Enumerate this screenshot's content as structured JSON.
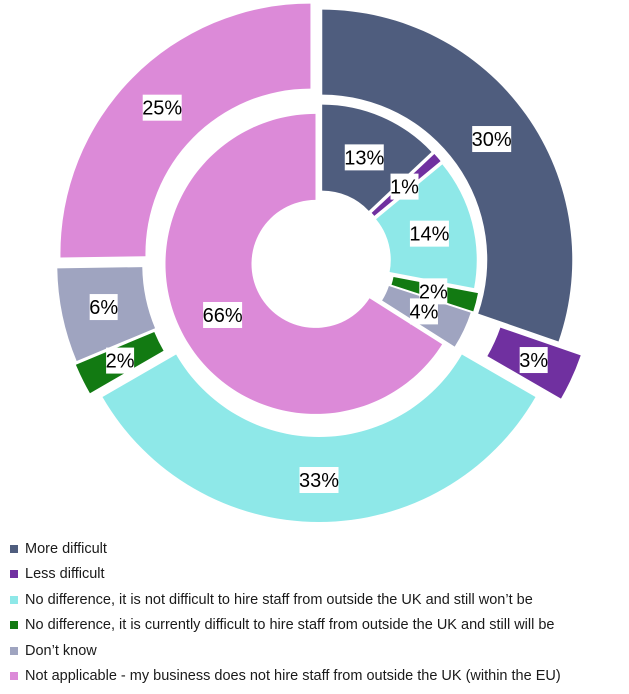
{
  "chart_data": {
    "type": "donut",
    "categories": [
      "More difficult",
      "Less difficult",
      "No difference, it is not difficult to hire staff from outside the UK and still won’t be",
      "No difference, it is currently difficult to hire staff from outside the UK and still will be",
      "Don’t know",
      "Not applicable - my business does not hire staff from outside the UK (within the EU)"
    ],
    "colors": [
      "#4f5d7e",
      "#7030a0",
      "#8ee8e8",
      "#127a12",
      "#9fa4c0",
      "#dc8ad8"
    ],
    "series": [
      {
        "ring": "outer",
        "values": [
          30,
          3,
          33,
          2,
          6,
          25
        ],
        "labels": [
          "30%",
          "3%",
          "33%",
          "2%",
          "6%",
          "25%"
        ]
      },
      {
        "ring": "inner",
        "values": [
          13,
          1,
          14,
          2,
          4,
          66
        ],
        "labels": [
          "13%",
          "1%",
          "14%",
          "2%",
          "4%",
          "66%"
        ]
      }
    ],
    "legend_position": "bottom"
  },
  "legend": {
    "items": [
      {
        "label": "More difficult",
        "color": "#4f5d7e"
      },
      {
        "label": "Less difficult",
        "color": "#7030a0"
      },
      {
        "label": "No difference, it is not difficult to hire staff from outside the UK and still won’t be",
        "color": "#8ee8e8"
      },
      {
        "label": "No difference, it is currently difficult to hire staff from outside the UK and still will be",
        "color": "#127a12"
      },
      {
        "label": "Don’t know",
        "color": "#9fa4c0"
      },
      {
        "label": "Not applicable - my business does not hire staff from outside the UK (within the EU)",
        "color": "#dc8ad8"
      }
    ]
  }
}
